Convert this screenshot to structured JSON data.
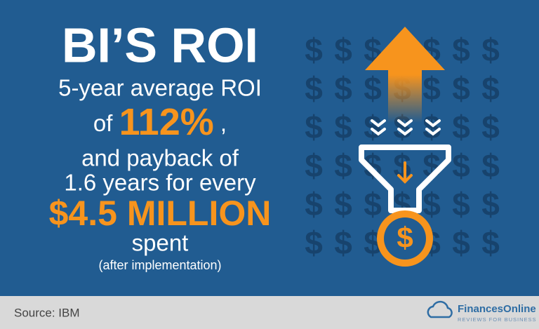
{
  "headline": {
    "title": "BI’S ROI",
    "line1": "5-year average ROI",
    "line2_prefix": "of",
    "roi": "112%",
    "line2_suffix": ",",
    "line3": "and payback of",
    "line4": "1.6 years for every",
    "amount": "$4.5 MILLION",
    "line5": "spent",
    "note": "(after implementation)"
  },
  "background": {
    "glyph": "$"
  },
  "footer": {
    "source": "Source: IBM",
    "brand": "FinancesOnline",
    "tagline": "REVIEWS FOR BUSINESS"
  }
}
